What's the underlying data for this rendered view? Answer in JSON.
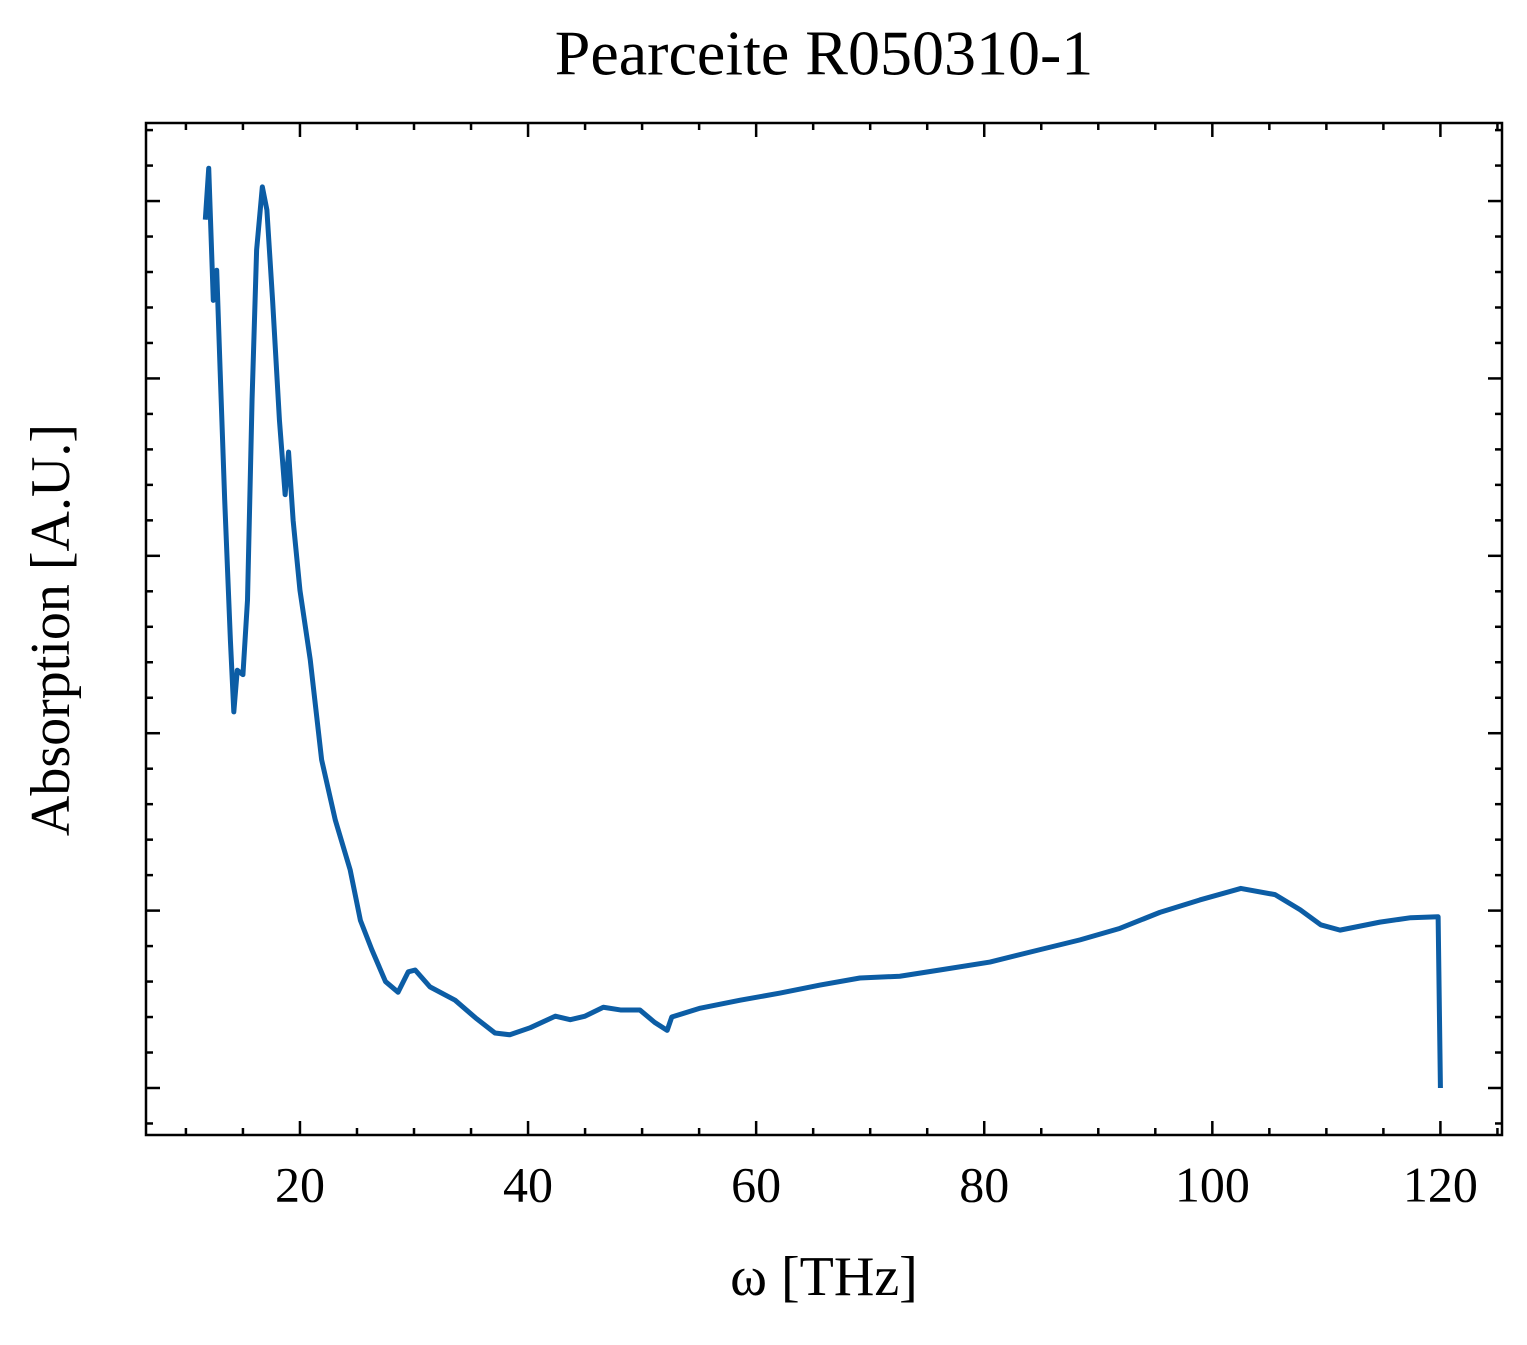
{
  "chart_data": {
    "type": "line",
    "title": "Pearceite R050310-1",
    "x_label": "ω [THz]",
    "y_label": "Absorption [A.U.]",
    "xlim": [
      6.5,
      125.4
    ],
    "ylim": [
      -0.053,
      1.088
    ],
    "xticks": [
      20,
      40,
      60,
      80,
      100,
      120
    ],
    "xminorticks": [
      10,
      15,
      25,
      30,
      35,
      45,
      50,
      55,
      65,
      70,
      75,
      85,
      90,
      95,
      105,
      110,
      115,
      125
    ],
    "yticks": [
      0,
      0.2,
      0.4,
      0.6,
      0.8,
      1
    ],
    "yminorticks": [
      -0.04,
      0.04,
      0.08,
      0.12,
      0.16,
      0.24,
      0.28,
      0.32,
      0.36,
      0.44,
      0.48,
      0.52,
      0.56,
      0.64,
      0.68,
      0.72,
      0.76,
      0.84,
      0.88,
      0.92,
      0.96,
      1.04,
      1.08
    ],
    "y_tick_labels": false,
    "grid": false,
    "series": [
      {
        "color": "#0c5da5",
        "x": [
          11.7,
          12.0,
          12.4,
          12.7,
          13.0,
          13.4,
          13.9,
          14.2,
          14.5,
          15.0,
          15.4,
          15.8,
          16.2,
          16.7,
          17.1,
          17.6,
          18.2,
          18.7,
          19.0,
          19.4,
          20.0,
          20.9,
          21.9,
          23.1,
          24.4,
          25.3,
          26.3,
          27.5,
          28.6,
          29.5,
          30.1,
          31.4,
          33.6,
          35.4,
          37.1,
          38.4,
          40.2,
          42.4,
          43.7,
          45.0,
          46.6,
          48.1,
          49.8,
          51.1,
          52.2,
          52.6,
          55.1,
          58.6,
          62.1,
          65.6,
          69.1,
          72.6,
          76.1,
          80.5,
          84.9,
          88.4,
          91.9,
          95.4,
          98.9,
          102.5,
          105.5,
          107.7,
          109.5,
          111.2,
          114.7,
          117.4,
          119.8,
          120.0
        ],
        "values": [
          0.979,
          1.037,
          0.888,
          0.922,
          0.809,
          0.663,
          0.505,
          0.424,
          0.471,
          0.466,
          0.55,
          0.776,
          0.945,
          1.016,
          0.99,
          0.888,
          0.753,
          0.669,
          0.717,
          0.64,
          0.561,
          0.483,
          0.37,
          0.302,
          0.246,
          0.189,
          0.156,
          0.12,
          0.108,
          0.131,
          0.133,
          0.114,
          0.099,
          0.079,
          0.062,
          0.06,
          0.068,
          0.081,
          0.077,
          0.081,
          0.091,
          0.088,
          0.088,
          0.074,
          0.065,
          0.08,
          0.09,
          0.099,
          0.107,
          0.116,
          0.124,
          0.126,
          0.133,
          0.142,
          0.156,
          0.167,
          0.18,
          0.198,
          0.212,
          0.225,
          0.218,
          0.201,
          0.184,
          0.178,
          0.187,
          0.192,
          0.193,
          0.0
        ]
      }
    ]
  }
}
